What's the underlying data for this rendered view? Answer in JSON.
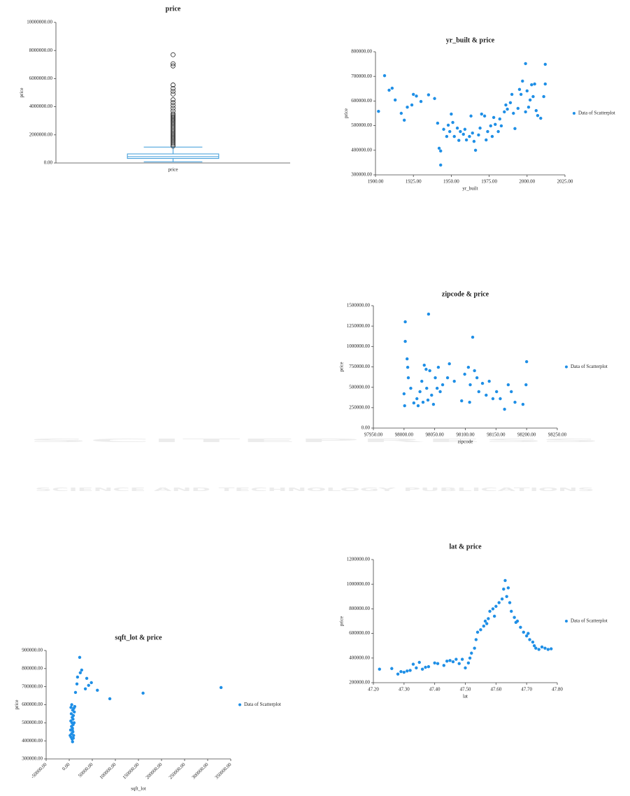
{
  "watermark": {
    "title": "SCITEPRESS",
    "subtitle": "SCIENCE AND TECHNOLOGY PUBLICATIONS"
  },
  "chart_data": [
    {
      "type": "box",
      "title": "price",
      "ylabel": "price",
      "categories": [
        "price"
      ],
      "color": "#3a9ad9",
      "min": 80000,
      "q1": 320000,
      "median": 450000,
      "q3": 645000,
      "max": 1130000,
      "outliers": [
        1200000,
        1300000,
        1400000,
        1500000,
        1600000,
        1700000,
        1800000,
        1900000,
        2000000,
        2100000,
        2200000,
        2300000,
        2400000,
        2500000,
        2600000,
        2700000,
        2800000,
        2900000,
        3000000,
        3100000,
        3200000,
        3300000,
        3400000,
        3500000,
        3700000,
        3900000,
        4100000,
        4300000,
        4500000,
        4900000,
        5100000,
        5300000,
        5550000,
        6900000,
        7060000,
        7700000
      ],
      "ylim": [
        0,
        10000000
      ],
      "yticks": [
        {
          "value": 0,
          "label": "0.00"
        },
        {
          "value": 2000000,
          "label": "2000000.00"
        },
        {
          "value": 4000000,
          "label": "4000000.00"
        },
        {
          "value": 6000000,
          "label": "6000000.00"
        },
        {
          "value": 8000000,
          "label": "8000000.00"
        },
        {
          "value": 10000000,
          "label": "10000000.00"
        }
      ]
    },
    {
      "type": "scatter",
      "title": "yr_built & price",
      "xlabel": "yr_built",
      "ylabel": "price",
      "legend": "right",
      "x": [
        1902,
        1906,
        1909,
        1911,
        1913,
        1917,
        1919,
        1921,
        1924,
        1925,
        1927,
        1930,
        1935,
        1939,
        1941,
        1942,
        1943,
        1943,
        1945,
        1947,
        1948,
        1949,
        1950,
        1951,
        1952,
        1954,
        1955,
        1956,
        1958,
        1959,
        1960,
        1962,
        1963,
        1964,
        1965,
        1966,
        1968,
        1969,
        1970,
        1972,
        1973,
        1974,
        1976,
        1977,
        1978,
        1979,
        1981,
        1982,
        1983,
        1985,
        1986,
        1987,
        1989,
        1990,
        1991,
        1992,
        1994,
        1995,
        1996,
        1997,
        1999,
        1999,
        2000,
        2001,
        2002,
        2003,
        2004,
        2005,
        2006,
        2007,
        2009,
        2011,
        2012,
        2012
      ],
      "series": [
        {
          "name": "Data of Scatterplot",
          "color": "#1f8fe6",
          "values": [
            558000,
            703000,
            644000,
            652000,
            604000,
            550000,
            522000,
            575000,
            584000,
            627000,
            620000,
            598000,
            625000,
            610000,
            510000,
            408000,
            397000,
            340000,
            485000,
            456000,
            502000,
            476000,
            547000,
            513000,
            456000,
            490000,
            440000,
            476000,
            465000,
            485000,
            442000,
            456000,
            539000,
            470000,
            436000,
            400000,
            462000,
            490000,
            547000,
            539000,
            442000,
            476000,
            499000,
            456000,
            533000,
            505000,
            476000,
            527000,
            499000,
            556000,
            584000,
            567000,
            593000,
            627000,
            550000,
            488000,
            570000,
            647000,
            627000,
            681000,
            556000,
            752000,
            641000,
            575000,
            604000,
            666000,
            618000,
            669000,
            561000,
            541000,
            530000,
            618000,
            669000,
            749000
          ]
        }
      ],
      "xlim": [
        1900,
        2025
      ],
      "xticks": [
        {
          "value": 1900,
          "label": "1900.00"
        },
        {
          "value": 1925,
          "label": "1925.00"
        },
        {
          "value": 1950,
          "label": "1950.00"
        },
        {
          "value": 1975,
          "label": "1975.00"
        },
        {
          "value": 2000,
          "label": "2000.00"
        },
        {
          "value": 2025,
          "label": "2025.00"
        }
      ],
      "ylim": [
        300000,
        800000
      ],
      "yticks": [
        {
          "value": 300000,
          "label": "300000.00"
        },
        {
          "value": 400000,
          "label": "400000.00"
        },
        {
          "value": 500000,
          "label": "500000.00"
        },
        {
          "value": 600000,
          "label": "600000.00"
        },
        {
          "value": 700000,
          "label": "700000.00"
        },
        {
          "value": 800000,
          "label": "800000.00"
        }
      ]
    },
    {
      "type": "scatter",
      "title": "zipcode & price",
      "xlabel": "zipcode",
      "ylabel": "price",
      "legend": "right",
      "x": [
        98002,
        98002,
        98005,
        98006,
        98007,
        98001,
        98000,
        98011,
        98016,
        98021,
        98023,
        98026,
        98029,
        98031,
        98033,
        98036,
        98037,
        98039,
        98040,
        98042,
        98045,
        98048,
        98051,
        98054,
        98056,
        98059,
        98063,
        98071,
        98074,
        98082,
        98094,
        98099,
        98105,
        98107,
        98108,
        98112,
        98115,
        98119,
        98122,
        98128,
        98134,
        98139,
        98145,
        98151,
        98157,
        98164,
        98170,
        98175,
        98181,
        98194,
        98199,
        98200
      ],
      "series": [
        {
          "name": "Data of Scatterplot",
          "color": "#1f8fe6",
          "values": [
            1302000,
            1062000,
            848000,
            745000,
            617000,
            274000,
            420000,
            488000,
            308000,
            360000,
            274000,
            446000,
            574000,
            317000,
            771000,
            720000,
            488000,
            343000,
            1397000,
            703000,
            403000,
            291000,
            617000,
            488000,
            745000,
            446000,
            531000,
            617000,
            788000,
            574000,
            334000,
            660000,
            745000,
            317000,
            531000,
            1114000,
            703000,
            617000,
            446000,
            548000,
            403000,
            574000,
            360000,
            446000,
            360000,
            231000,
            531000,
            446000,
            317000,
            291000,
            531000,
            814000
          ]
        }
      ],
      "xlim": [
        97950,
        98250
      ],
      "xticks": [
        {
          "value": 97950,
          "label": "97950.00"
        },
        {
          "value": 98000,
          "label": "98000.00"
        },
        {
          "value": 98050,
          "label": "98050.00"
        },
        {
          "value": 98100,
          "label": "98100.00"
        },
        {
          "value": 98150,
          "label": "98150.00"
        },
        {
          "value": 98200,
          "label": "98200.00"
        },
        {
          "value": 98250,
          "label": "98250.00"
        }
      ],
      "ylim": [
        0,
        1500000
      ],
      "yticks": [
        {
          "value": 0,
          "label": "0.00"
        },
        {
          "value": 250000,
          "label": "250000.00"
        },
        {
          "value": 500000,
          "label": "500000.00"
        },
        {
          "value": 750000,
          "label": "750000.00"
        },
        {
          "value": 1000000,
          "label": "1000000.00"
        },
        {
          "value": 1250000,
          "label": "1250000.00"
        },
        {
          "value": 1500000,
          "label": "1500000.00"
        }
      ]
    },
    {
      "type": "scatter",
      "title": "lat & price",
      "xlabel": "lat",
      "ylabel": "price",
      "legend": "right",
      "x": [
        47.22,
        47.26,
        47.28,
        47.29,
        47.3,
        47.31,
        47.32,
        47.33,
        47.34,
        47.35,
        47.36,
        47.37,
        47.38,
        47.4,
        47.41,
        47.43,
        47.44,
        47.45,
        47.46,
        47.47,
        47.48,
        47.49,
        47.5,
        47.51,
        47.515,
        47.52,
        47.53,
        47.535,
        47.54,
        47.55,
        47.56,
        47.565,
        47.57,
        47.575,
        47.58,
        47.59,
        47.595,
        47.6,
        47.61,
        47.62,
        47.625,
        47.63,
        47.635,
        47.64,
        47.645,
        47.65,
        47.66,
        47.665,
        47.67,
        47.68,
        47.69,
        47.7,
        47.705,
        47.71,
        47.72,
        47.725,
        47.73,
        47.74,
        47.75,
        47.76,
        47.77,
        47.78
      ],
      "series": [
        {
          "name": "Data of Scatterplot",
          "color": "#1f8fe6",
          "values": [
            310000,
            315000,
            270000,
            290000,
            285000,
            295000,
            300000,
            350000,
            320000,
            365000,
            310000,
            325000,
            330000,
            360000,
            355000,
            340000,
            375000,
            380000,
            370000,
            390000,
            355000,
            390000,
            320000,
            360000,
            400000,
            440000,
            480000,
            550000,
            610000,
            630000,
            660000,
            700000,
            680000,
            720000,
            780000,
            800000,
            740000,
            820000,
            850000,
            880000,
            960000,
            1030000,
            900000,
            970000,
            850000,
            780000,
            730000,
            690000,
            700000,
            650000,
            610000,
            580000,
            600000,
            550000,
            530000,
            500000,
            480000,
            470000,
            490000,
            480000,
            470000,
            475000
          ]
        }
      ],
      "xlim": [
        47.2,
        47.8
      ],
      "xticks": [
        {
          "value": 47.2,
          "label": "47.20"
        },
        {
          "value": 47.3,
          "label": "47.30"
        },
        {
          "value": 47.4,
          "label": "47.40"
        },
        {
          "value": 47.5,
          "label": "47.50"
        },
        {
          "value": 47.6,
          "label": "47.60"
        },
        {
          "value": 47.7,
          "label": "47.70"
        },
        {
          "value": 47.8,
          "label": "47.80"
        }
      ],
      "ylim": [
        200000,
        1200000
      ],
      "yticks": [
        {
          "value": 200000,
          "label": "200000.00"
        },
        {
          "value": 400000,
          "label": "400000.00"
        },
        {
          "value": 600000,
          "label": "600000.00"
        },
        {
          "value": 800000,
          "label": "800000.00"
        },
        {
          "value": 1000000,
          "label": "1000000.00"
        },
        {
          "value": 1200000,
          "label": "1200000.00"
        }
      ]
    },
    {
      "type": "scatter",
      "title": "sqft_lot & price",
      "xlabel": "sqft_lot",
      "ylabel": "price",
      "legend": "right",
      "xtick_rotation": 45,
      "x": [
        2000,
        3000,
        3500,
        4000,
        4500,
        5000,
        5200,
        5500,
        6000,
        6200,
        6500,
        7000,
        7200,
        7500,
        8000,
        8200,
        8500,
        9000,
        9500,
        10000,
        10500,
        11000,
        12000,
        3800,
        6800,
        8800,
        13600,
        16700,
        18000,
        22700,
        24000,
        27000,
        35000,
        38000,
        42000,
        48000,
        61000,
        88000,
        160000,
        329000
      ],
      "series": [
        {
          "name": "Data of Scatterplot",
          "color": "#1f8fe6",
          "values": [
            430000,
            460000,
            510000,
            420000,
            550000,
            480000,
            440000,
            600000,
            500000,
            410000,
            530000,
            470000,
            395000,
            570000,
            450000,
            520000,
            490000,
            540000,
            430000,
            580000,
            500000,
            560000,
            590000,
            585000,
            460000,
            415000,
            668000,
            715000,
            753000,
            862000,
            777000,
            792000,
            688000,
            746000,
            707000,
            722000,
            680000,
            633000,
            664000,
            695000
          ]
        }
      ],
      "xlim": [
        -50000,
        350000
      ],
      "xticks": [
        {
          "value": -50000,
          "label": "-50000.00"
        },
        {
          "value": 0,
          "label": "0.00"
        },
        {
          "value": 50000,
          "label": "50000.00"
        },
        {
          "value": 100000,
          "label": "100000.00"
        },
        {
          "value": 150000,
          "label": "150000.00"
        },
        {
          "value": 200000,
          "label": "200000.00"
        },
        {
          "value": 250000,
          "label": "250000.00"
        },
        {
          "value": 300000,
          "label": "300000.00"
        },
        {
          "value": 350000,
          "label": "350000.00"
        }
      ],
      "ylim": [
        300000,
        900000
      ],
      "yticks": [
        {
          "value": 300000,
          "label": "300000.00"
        },
        {
          "value": 400000,
          "label": "400000.00"
        },
        {
          "value": 500000,
          "label": "500000.00"
        },
        {
          "value": 600000,
          "label": "600000.00"
        },
        {
          "value": 700000,
          "label": "700000.00"
        },
        {
          "value": 800000,
          "label": "800000.00"
        },
        {
          "value": 900000,
          "label": "900000.00"
        }
      ]
    }
  ]
}
